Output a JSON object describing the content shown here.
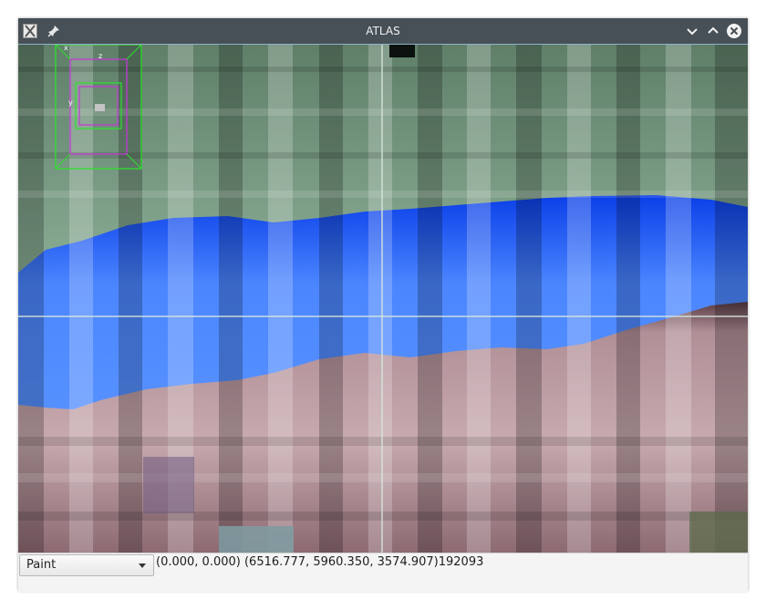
{
  "window": {
    "title": "ATLAS",
    "app_icon": "atlas-app-icon",
    "pin_icon": "pin-icon",
    "buttons": [
      "minimize-icon",
      "maximize-icon",
      "close-icon"
    ]
  },
  "viewer": {
    "orientation_labels": {
      "x": "x",
      "y": "y",
      "z": "z"
    },
    "colors": {
      "upper_layer": "#8fb39a",
      "blue_layer": "#2f6df5",
      "lower_layer": "#b7939a",
      "crosshair": "#cfe3d6",
      "orientation_green": "#2fe02f",
      "orientation_magenta": "#c23ad3"
    }
  },
  "statusbar": {
    "mode_dropdown": {
      "selected": "Paint"
    },
    "coords_text": "(0.000, 0.000) (6516.777, 5960.350, 3574.907)192093"
  }
}
